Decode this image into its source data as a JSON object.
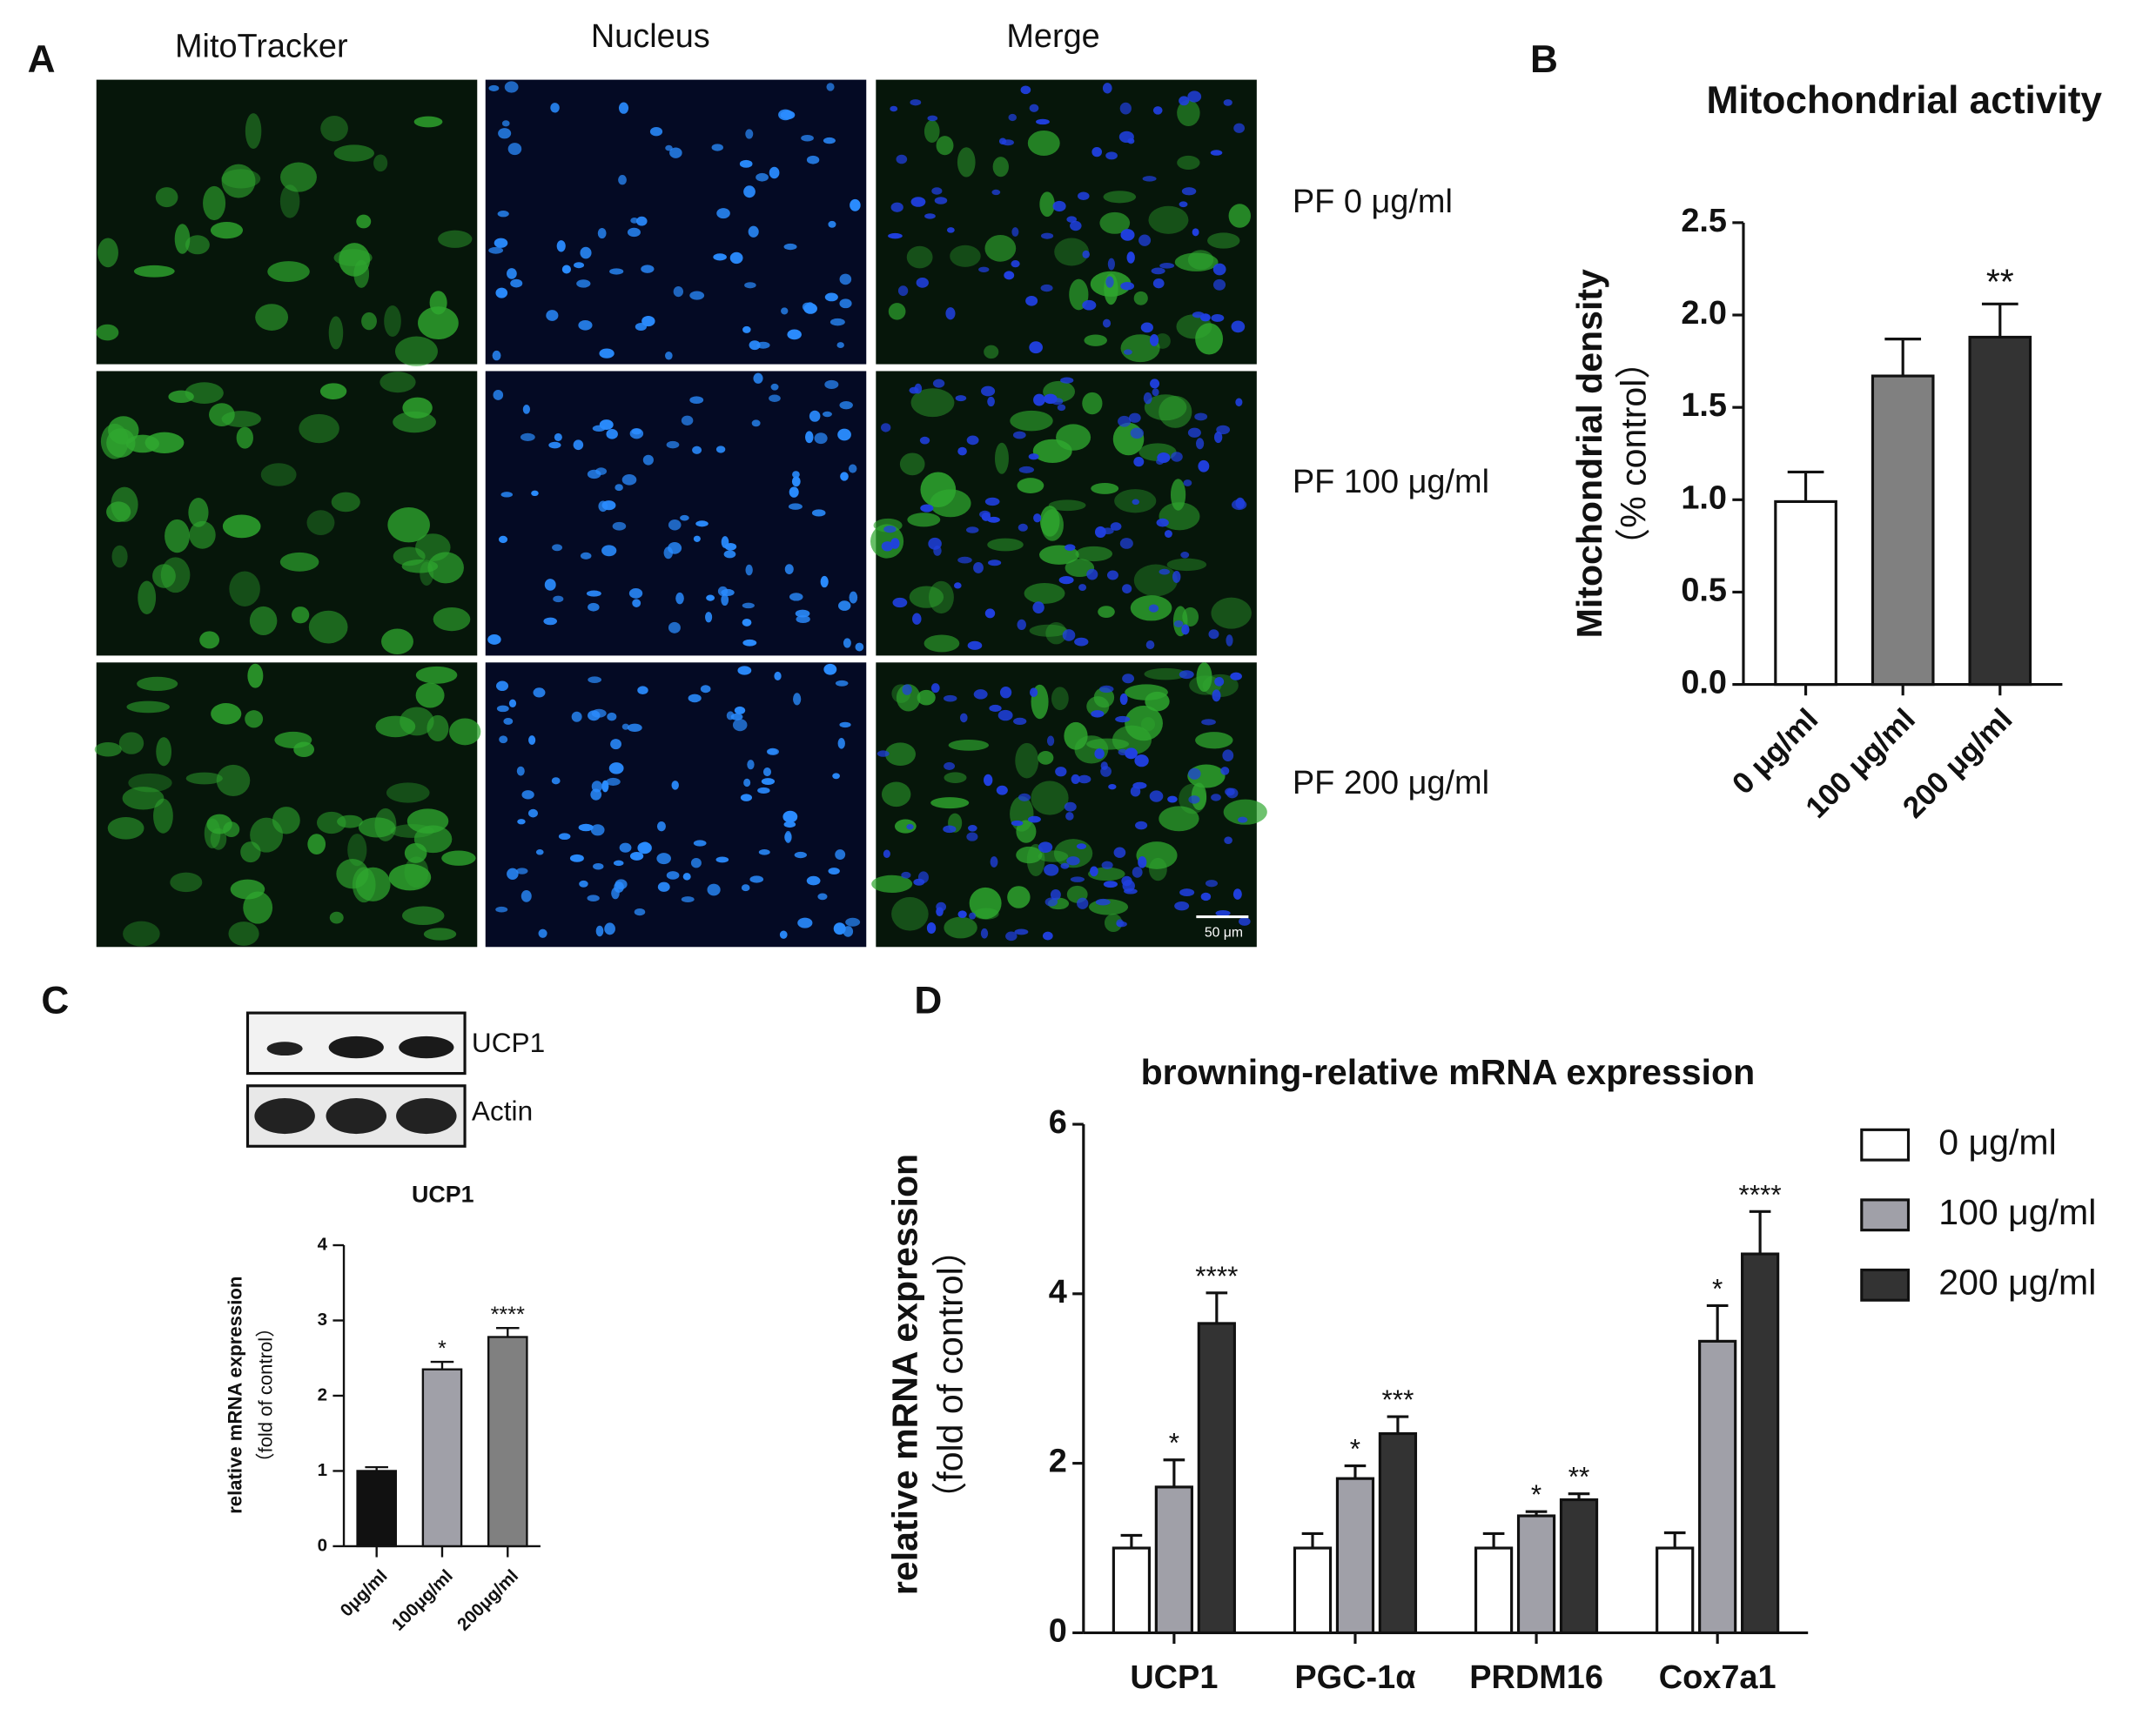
{
  "panel_a": {
    "letter": "A",
    "columns": [
      "MitoTracker",
      "Nucleus",
      "Merge"
    ],
    "rows": [
      "PF 0 μg/ml",
      "PF 100 μg/ml",
      "PF 200 μg/ml"
    ],
    "scale_bar": "50 μm"
  },
  "blot": {
    "letter": "C",
    "bands": [
      "UCP1",
      "Actin"
    ]
  },
  "chart_data": [
    {
      "type": "bar",
      "letter": "B",
      "title": "Mitochondrial activity",
      "ylabel": [
        "Mitochondrial density",
        "（% control）"
      ],
      "categories": [
        "0 μg/ml",
        "100 μg/ml",
        "200 μg/ml"
      ],
      "values": [
        0.99,
        1.67,
        1.88
      ],
      "errors": [
        0.16,
        0.2,
        0.18
      ],
      "colors": [
        "#ffffff",
        "#808080",
        "#333333"
      ],
      "significance": [
        null,
        null,
        "**"
      ],
      "ylim": [
        0,
        2.5
      ],
      "yticks": [
        {
          "value": 0,
          "label": "0.0"
        },
        {
          "value": 0.5,
          "label": "0.5"
        },
        {
          "value": 1,
          "label": "1.0"
        },
        {
          "value": 1.5,
          "label": "1.5"
        },
        {
          "value": 2,
          "label": "2.0"
        },
        {
          "value": 2.5,
          "label": "2.5"
        }
      ]
    },
    {
      "type": "bar",
      "title": "UCP1",
      "ylabel": [
        "relative mRNA expression",
        "（fold of control）"
      ],
      "categories": [
        "0μg/ml",
        "100μg/ml",
        "200μg/ml"
      ],
      "values": [
        1.0,
        2.35,
        2.78
      ],
      "errors": [
        0.05,
        0.1,
        0.12
      ],
      "colors": [
        "#111111",
        "#a0a0a8",
        "#808080"
      ],
      "significance": [
        null,
        "*",
        "****"
      ],
      "ylim": [
        0,
        4
      ],
      "yticks": [
        0,
        1,
        2,
        3,
        4
      ]
    },
    {
      "type": "grouped_bar",
      "letter": "D",
      "title": "browning-relative mRNA expression",
      "ylabel": [
        "relative mRNA expression",
        "（fold of control）"
      ],
      "categories": [
        "UCP1",
        "PGC-1α",
        "PRDM16",
        "Cox7a1"
      ],
      "series": [
        {
          "name": "0 μg/ml",
          "color": "#ffffff",
          "values": [
            1.0,
            1.0,
            1.0,
            1.0
          ],
          "errors": [
            0.15,
            0.17,
            0.17,
            0.18
          ],
          "significance": [
            null,
            null,
            null,
            null
          ]
        },
        {
          "name": "100 μg/ml",
          "color": "#a0a0a8",
          "values": [
            1.72,
            1.82,
            1.38,
            3.44
          ],
          "errors": [
            0.32,
            0.15,
            0.05,
            0.42
          ],
          "significance": [
            "*",
            "*",
            "*",
            "*"
          ]
        },
        {
          "name": "200 μg/ml",
          "color": "#333333",
          "values": [
            3.65,
            2.35,
            1.57,
            4.47
          ],
          "errors": [
            0.36,
            0.2,
            0.07,
            0.5
          ],
          "significance": [
            "****",
            "***",
            "**",
            "****"
          ]
        }
      ],
      "ylim": [
        0,
        6
      ],
      "yticks": [
        0,
        2,
        4,
        6
      ],
      "legend": "right"
    }
  ]
}
